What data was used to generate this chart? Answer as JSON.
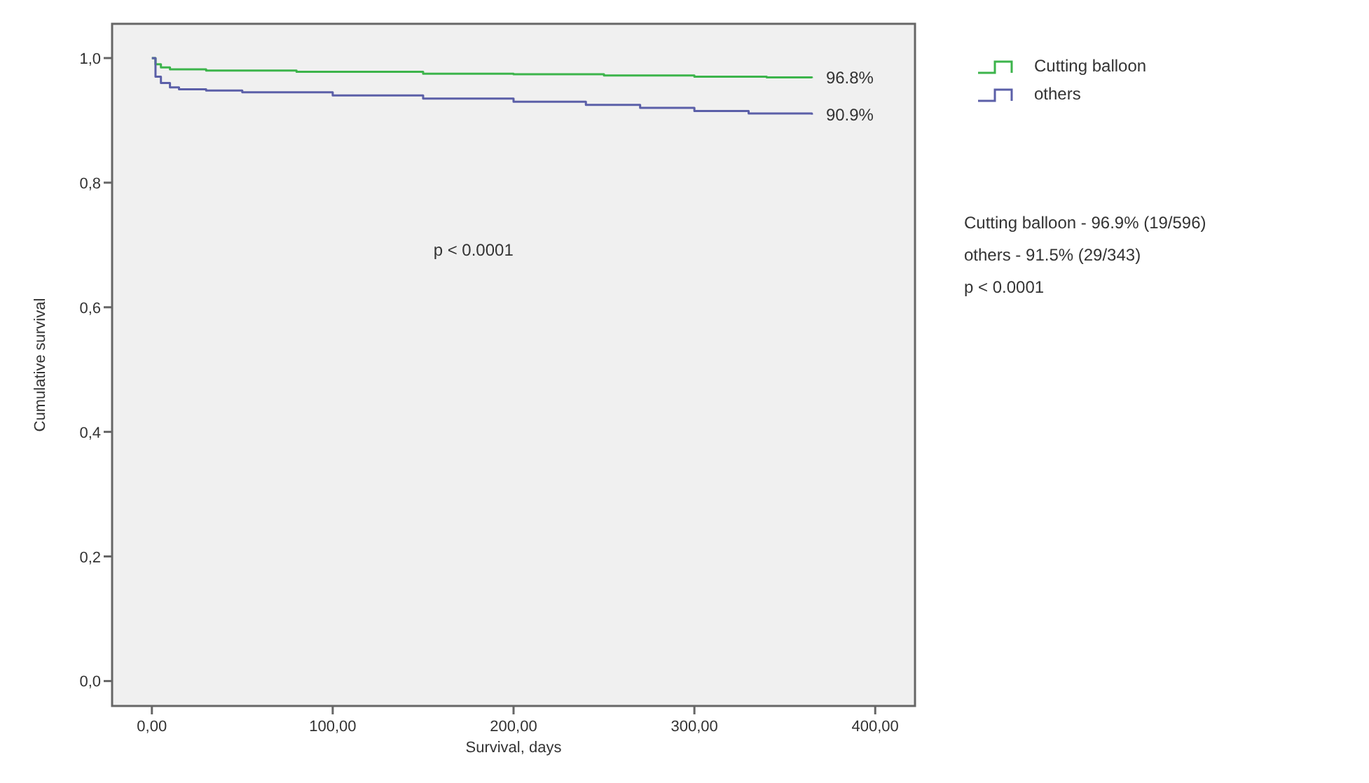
{
  "chart_data": {
    "type": "step",
    "xlabel": "Survival, days",
    "ylabel": "Cumulative survival",
    "xlim": [
      -22,
      422
    ],
    "ylim": [
      -0.04,
      1.055
    ],
    "xticks": [
      {
        "value": 0,
        "label": "0,00"
      },
      {
        "value": 100,
        "label": "100,00"
      },
      {
        "value": 200,
        "label": "200,00"
      },
      {
        "value": 300,
        "label": "300,00"
      },
      {
        "value": 400,
        "label": "400,00"
      }
    ],
    "yticks": [
      {
        "value": 0,
        "label": "0,0"
      },
      {
        "value": 0.2,
        "label": "0,2"
      },
      {
        "value": 0.4,
        "label": "0,4"
      },
      {
        "value": 0.6,
        "label": "0,6"
      },
      {
        "value": 0.8,
        "label": "0,8"
      },
      {
        "value": 1,
        "label": "1,0"
      }
    ],
    "grid": false,
    "legend": "right",
    "line_style": "solid",
    "series": [
      {
        "name": "Cutting balloon",
        "color": "#3cb44b",
        "x": [
          0,
          2,
          5,
          10,
          30,
          80,
          150,
          200,
          250,
          300,
          340,
          365
        ],
        "values": [
          1,
          0.99,
          0.985,
          0.982,
          0.98,
          0.978,
          0.975,
          0.974,
          0.972,
          0.97,
          0.969,
          0.968
        ]
      },
      {
        "name": "others",
        "color": "#5b5fa8",
        "x": [
          0,
          2,
          5,
          10,
          15,
          30,
          50,
          100,
          150,
          200,
          240,
          270,
          300,
          330,
          365
        ],
        "values": [
          1,
          0.97,
          0.96,
          0.953,
          0.95,
          0.948,
          0.945,
          0.94,
          0.935,
          0.93,
          0.925,
          0.92,
          0.915,
          0.911,
          0.909
        ]
      }
    ],
    "annotations": [
      "96.8%",
      "90.9%",
      "p < 0.0001",
      "Cutting balloon - 96.9% (19/596)",
      "others - 91.5% (29/343)",
      "p < 0.0001"
    ]
  }
}
